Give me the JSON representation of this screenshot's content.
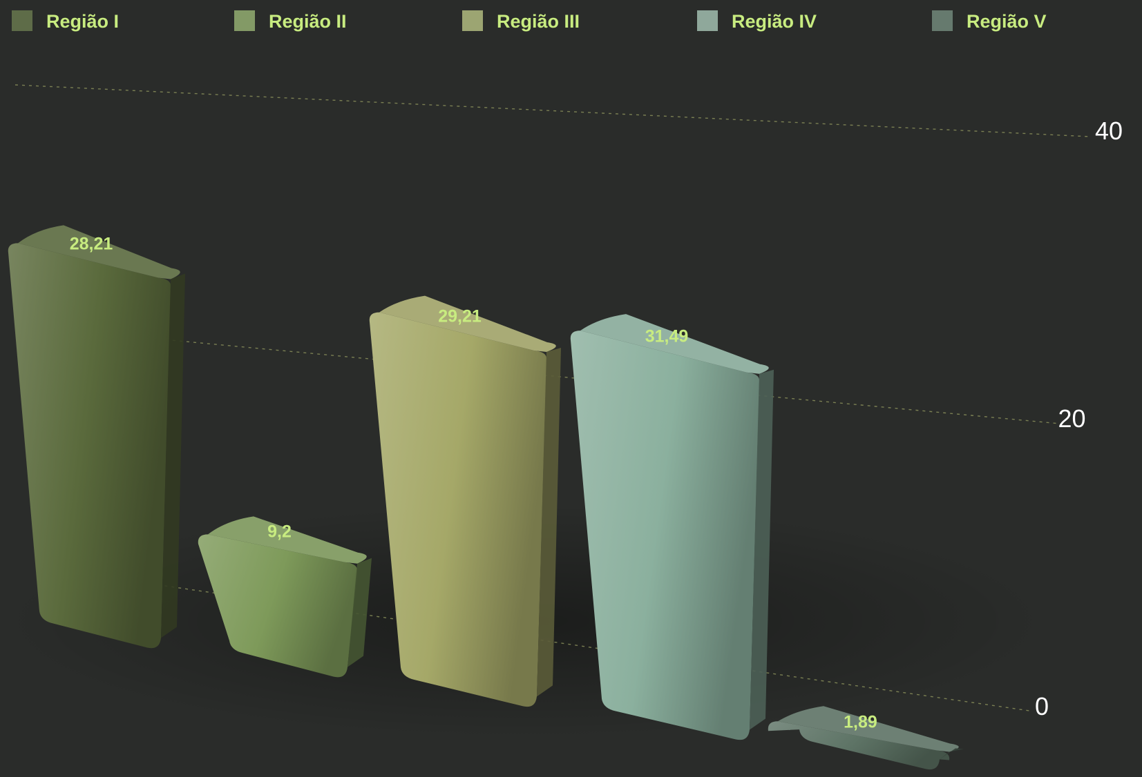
{
  "chart_data": {
    "type": "bar",
    "categories": [
      "Região I",
      "Região II",
      "Região III",
      "Região IV",
      "Região V"
    ],
    "values": [
      28.21,
      9.2,
      29.21,
      31.49,
      1.89
    ],
    "value_labels": [
      "28,21",
      "9,2",
      "29,21",
      "31,49",
      "1,89"
    ],
    "legend": [
      "Região I",
      "Região II",
      "Região III",
      "Região IV",
      "Região V"
    ],
    "legend_position": "top",
    "y_ticks": [
      0,
      20,
      40
    ],
    "y_tick_labels": [
      "0",
      "20",
      "40"
    ],
    "ylim": [
      0,
      40
    ],
    "y_axis_side": "right",
    "grid": true,
    "projection": "3d-perspective",
    "colors": [
      "#5a6a3c",
      "#7e9a5a",
      "#a5a868",
      "#8bb09e",
      "#5e7466"
    ],
    "legend_swatch_colors": [
      "#5e6c48",
      "#839a66",
      "#9ca572",
      "#8fa89b",
      "#667a6e"
    ],
    "label_color": "#c8ec80",
    "tick_color": "#ffffff",
    "grid_color": "#8a8f5a",
    "background": "#2a2c2a"
  }
}
